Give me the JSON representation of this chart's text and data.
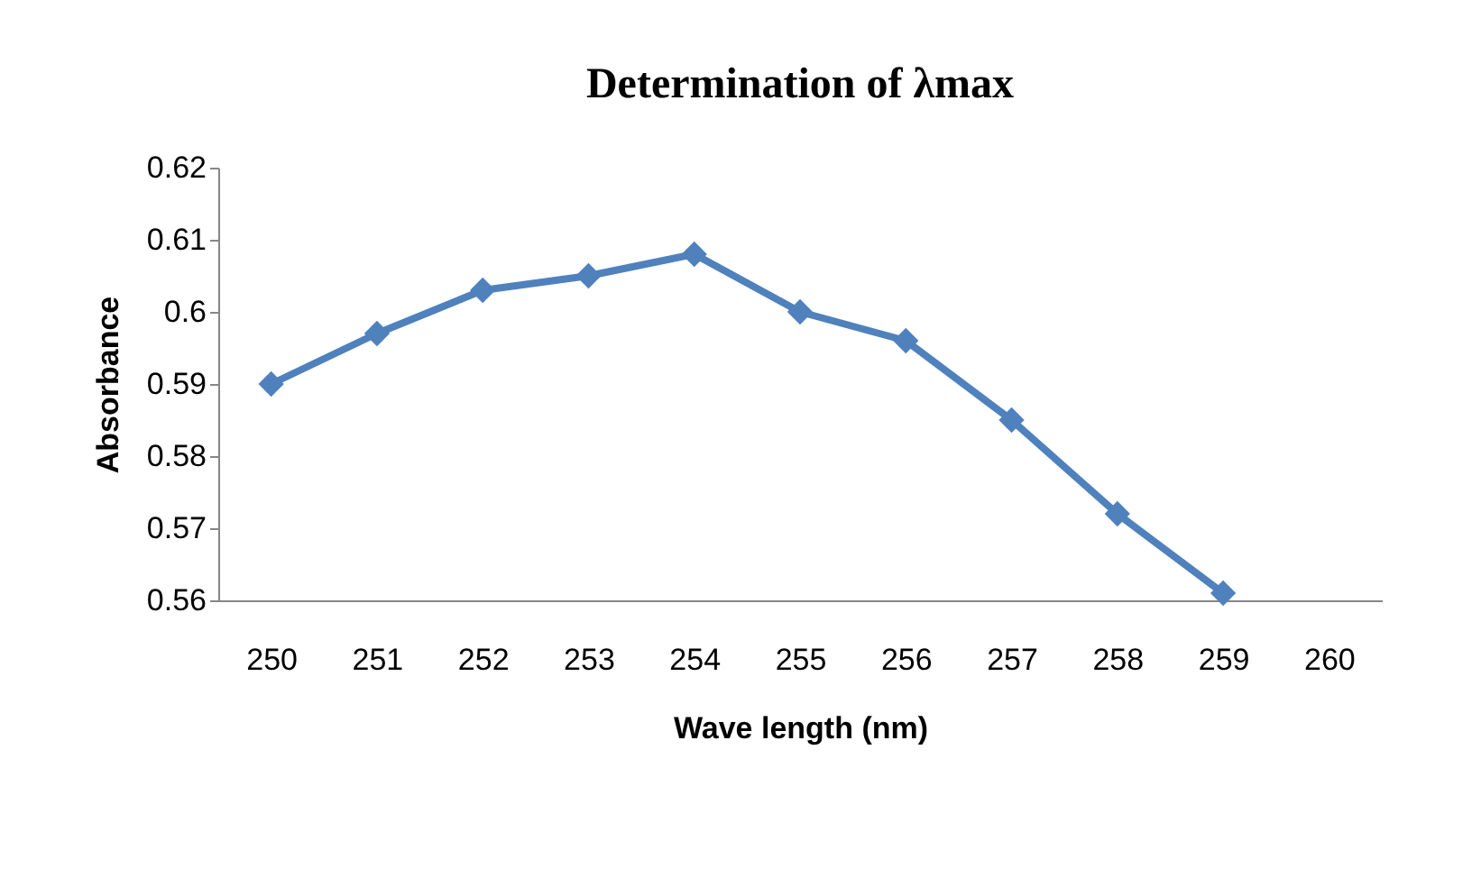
{
  "chart_data": {
    "type": "line",
    "title": "Determination of λmax",
    "xlabel": "Wave length (nm)",
    "ylabel": "Absorbance",
    "categories": [
      "250",
      "251",
      "252",
      "253",
      "254",
      "255",
      "256",
      "257",
      "258",
      "259",
      "260"
    ],
    "series": [
      {
        "color": "#4f81bd",
        "values": [
          0.59,
          0.597,
          0.603,
          0.605,
          0.608,
          0.6,
          0.596,
          0.585,
          0.572,
          0.561,
          null
        ]
      }
    ],
    "ylim": [
      0.56,
      0.62
    ],
    "yticks": [
      0.56,
      0.57,
      0.58,
      0.59,
      0.6,
      0.61,
      0.62
    ],
    "grid": false,
    "legend": false,
    "marker": "diamond",
    "line_style": "solid"
  }
}
